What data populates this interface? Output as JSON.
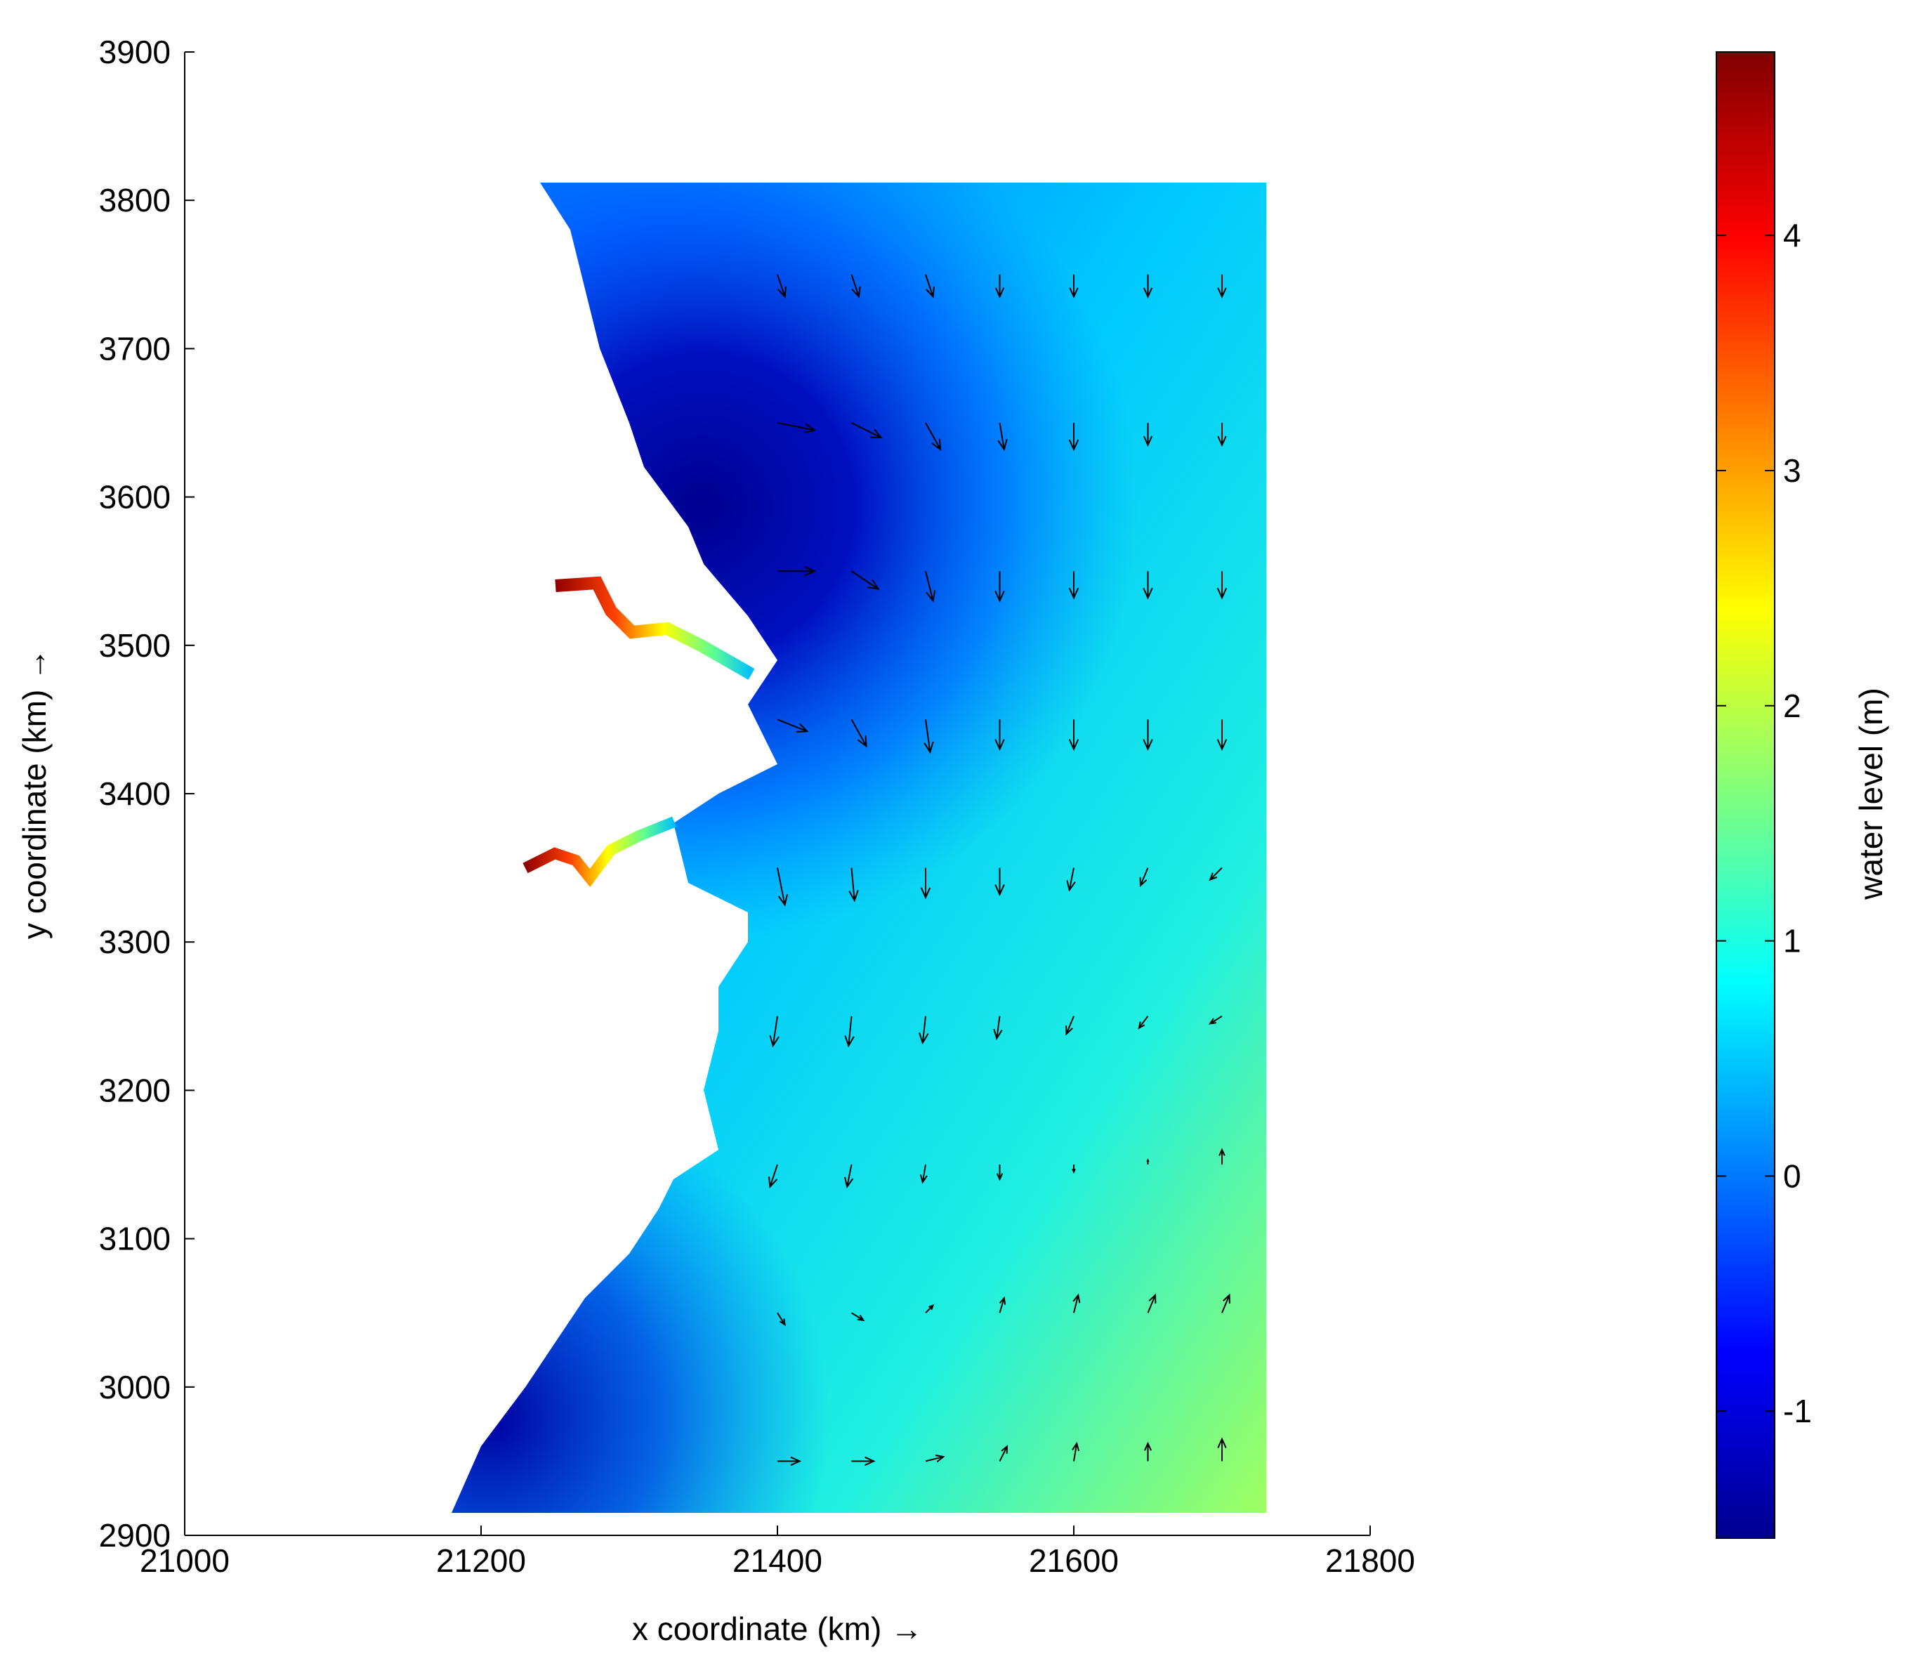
{
  "chart_data": {
    "type": "quiver",
    "xlabel": "x coordinate (km) →",
    "ylabel": "y coordinate (km) →",
    "xlim": [
      21000,
      21800
    ],
    "xticks": [
      21000,
      21200,
      21400,
      21600,
      21800
    ],
    "ylim": [
      2900,
      3900
    ],
    "yticks": [
      2900,
      3000,
      3100,
      3200,
      3300,
      3400,
      3500,
      3600,
      3700,
      3800,
      3900
    ],
    "colorbar": {
      "label": "water level (m)",
      "lim": [
        -1.54,
        4.78
      ],
      "ticks": [
        -1,
        0,
        1,
        2,
        3,
        4
      ]
    },
    "vectors": {
      "x": [
        21400,
        21450,
        21500,
        21550,
        21600,
        21650,
        21700,
        21400,
        21450,
        21500,
        21550,
        21600,
        21650,
        21700,
        21400,
        21450,
        21500,
        21550,
        21600,
        21650,
        21700,
        21400,
        21450,
        21500,
        21550,
        21600,
        21650,
        21700,
        21400,
        21450,
        21500,
        21550,
        21600,
        21650,
        21700,
        21400,
        21450,
        21500,
        21550,
        21600,
        21650,
        21700,
        21400,
        21450,
        21500,
        21550,
        21600,
        21650,
        21700,
        21400,
        21450,
        21500,
        21550,
        21600,
        21650,
        21700,
        21400,
        21450,
        21500,
        21550,
        21600,
        21650,
        21700
      ],
      "y": [
        3750,
        3750,
        3750,
        3750,
        3750,
        3750,
        3750,
        3650,
        3650,
        3650,
        3650,
        3650,
        3650,
        3650,
        3550,
        3550,
        3550,
        3550,
        3550,
        3550,
        3550,
        3450,
        3450,
        3450,
        3450,
        3450,
        3450,
        3450,
        3350,
        3350,
        3350,
        3350,
        3350,
        3350,
        3350,
        3250,
        3250,
        3250,
        3250,
        3250,
        3250,
        3250,
        3150,
        3150,
        3150,
        3150,
        3150,
        3150,
        3150,
        3050,
        3050,
        3050,
        3050,
        3050,
        3050,
        3050,
        2950,
        2950,
        2950,
        2950,
        2950,
        2950,
        2950
      ],
      "u": [
        5,
        5,
        5,
        0,
        0,
        0,
        0,
        25,
        20,
        10,
        3,
        0,
        0,
        0,
        25,
        18,
        5,
        0,
        0,
        0,
        0,
        20,
        10,
        3,
        0,
        0,
        0,
        0,
        5,
        2,
        0,
        0,
        -3,
        -5,
        -8,
        -3,
        -2,
        -2,
        -2,
        -5,
        -6,
        -8,
        -5,
        -3,
        -2,
        0,
        0,
        0,
        0,
        5,
        8,
        5,
        3,
        3,
        5,
        5,
        15,
        15,
        12,
        5,
        2,
        0,
        0
      ],
      "v": [
        -15,
        -15,
        -15,
        -15,
        -15,
        -15,
        -15,
        -5,
        -10,
        -18,
        -18,
        -18,
        -15,
        -15,
        0,
        -12,
        -20,
        -20,
        -18,
        -18,
        -18,
        -8,
        -18,
        -22,
        -20,
        -20,
        -20,
        -20,
        -25,
        -22,
        -20,
        -18,
        -15,
        -12,
        -8,
        -20,
        -20,
        -18,
        -15,
        -12,
        -8,
        -5,
        -15,
        -15,
        -12,
        -10,
        -5,
        3,
        10,
        -8,
        -5,
        5,
        10,
        12,
        12,
        12,
        0,
        0,
        3,
        10,
        12,
        12,
        15
      ]
    }
  }
}
